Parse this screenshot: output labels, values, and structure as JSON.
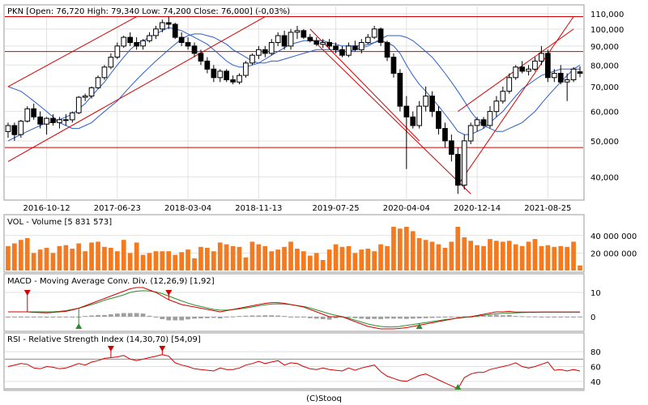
{
  "chart_data": [
    {
      "type": "candlestick",
      "title": "PKN [Open: 76,720  High: 79,340  Low: 74,200  Close: 76,000] (-0,03%)",
      "ticker": "PKN",
      "last": {
        "open": 76.72,
        "high": 79.34,
        "low": 74.2,
        "close": 76.0,
        "change_pct": "-0,03%"
      },
      "x_tick_labels": [
        "2016-10-12",
        "2017-06-23",
        "2018-03-04",
        "2018-11-13",
        "2019-07-25",
        "2020-04-04",
        "2020-12-14",
        "2021-08-25"
      ],
      "y_tick_labels": [
        "40,000",
        "50,000",
        "60,000",
        "70,000",
        "80,000",
        "90,000",
        "100,000",
        "110,000"
      ],
      "y_scale": "log",
      "ylim": [
        35,
        115
      ],
      "candles": [
        [
          53.0,
          56.0,
          51.0,
          55.0
        ],
        [
          55.0,
          56.0,
          50.0,
          52.0
        ],
        [
          52.0,
          57.0,
          51.0,
          56.5
        ],
        [
          56.5,
          62.0,
          56.0,
          61.0
        ],
        [
          61.0,
          63.0,
          57.0,
          58.0
        ],
        [
          58.0,
          60.0,
          54.0,
          55.5
        ],
        [
          55.5,
          58.0,
          52.0,
          57.5
        ],
        [
          57.5,
          59.0,
          55.0,
          56.0
        ],
        [
          56.0,
          58.0,
          54.0,
          57.0
        ],
        [
          57.0,
          59.0,
          55.0,
          57.0
        ],
        [
          57.0,
          60.0,
          56.0,
          59.5
        ],
        [
          59.5,
          66.0,
          59.0,
          65.5
        ],
        [
          65.5,
          67.0,
          64.0,
          66.0
        ],
        [
          66.0,
          70.0,
          65.0,
          69.5
        ],
        [
          69.5,
          75.0,
          69.0,
          74.0
        ],
        [
          74.0,
          80.0,
          73.0,
          79.0
        ],
        [
          79.0,
          86.0,
          78.0,
          84.0
        ],
        [
          84.0,
          92.0,
          83.0,
          90.0
        ],
        [
          90.0,
          96.0,
          89.0,
          95.0
        ],
        [
          95.0,
          98.0,
          90.0,
          92.0
        ],
        [
          92.0,
          95.0,
          88.0,
          90.0
        ],
        [
          90.0,
          94.0,
          88.0,
          93.0
        ],
        [
          93.0,
          98.0,
          92.0,
          96.0
        ],
        [
          96.0,
          102.0,
          94.0,
          100.0
        ],
        [
          100.0,
          106.0,
          98.0,
          104.0
        ],
        [
          104.0,
          108.0,
          100.0,
          103.0
        ],
        [
          103.0,
          104.0,
          94.0,
          95.0
        ],
        [
          95.0,
          98.0,
          90.0,
          92.0
        ],
        [
          92.0,
          95.0,
          88.0,
          90.0
        ],
        [
          90.0,
          92.0,
          84.0,
          86.0
        ],
        [
          86.0,
          88.0,
          80.0,
          82.0
        ],
        [
          82.0,
          84.0,
          76.0,
          78.0
        ],
        [
          78.0,
          80.0,
          72.0,
          74.0
        ],
        [
          74.0,
          78.0,
          72.0,
          77.0
        ],
        [
          77.0,
          78.0,
          72.0,
          73.0
        ],
        [
          73.0,
          75.0,
          71.0,
          72.0
        ],
        [
          72.0,
          76.0,
          71.0,
          75.0
        ],
        [
          75.0,
          82.0,
          74.0,
          81.0
        ],
        [
          81.0,
          86.0,
          80.0,
          85.0
        ],
        [
          85.0,
          90.0,
          83.0,
          88.0
        ],
        [
          88.0,
          90.0,
          84.0,
          86.0
        ],
        [
          86.0,
          94.0,
          85.0,
          92.0
        ],
        [
          92.0,
          98.0,
          90.0,
          96.0
        ],
        [
          96.0,
          99.0,
          88.0,
          90.0
        ],
        [
          90.0,
          100.0,
          88.0,
          98.0
        ],
        [
          98.0,
          102.0,
          94.0,
          99.0
        ],
        [
          99.0,
          100.0,
          94.0,
          95.0
        ],
        [
          95.0,
          97.0,
          92.0,
          93.0
        ],
        [
          93.0,
          95.0,
          90.0,
          91.0
        ],
        [
          91.0,
          94.0,
          89.0,
          92.0
        ],
        [
          92.0,
          94.0,
          88.0,
          90.0
        ],
        [
          90.0,
          92.0,
          86.0,
          88.0
        ],
        [
          88.0,
          90.0,
          84.0,
          85.0
        ],
        [
          85.0,
          92.0,
          84.0,
          90.0
        ],
        [
          90.0,
          93.0,
          87.0,
          88.0
        ],
        [
          88.0,
          94.0,
          86.0,
          92.0
        ],
        [
          92.0,
          97.0,
          91.0,
          95.0
        ],
        [
          95.0,
          102.0,
          94.0,
          100.0
        ],
        [
          100.0,
          101.0,
          90.0,
          92.0
        ],
        [
          92.0,
          93.0,
          82.0,
          84.0
        ],
        [
          84.0,
          86.0,
          74.0,
          76.0
        ],
        [
          76.0,
          78.0,
          60.0,
          62.0
        ],
        [
          62.0,
          66.0,
          42.0,
          58.0
        ],
        [
          58.0,
          60.0,
          54.0,
          55.0
        ],
        [
          55.0,
          64.0,
          54.0,
          62.0
        ],
        [
          62.0,
          70.0,
          60.0,
          66.0
        ],
        [
          66.0,
          68.0,
          58.0,
          60.0
        ],
        [
          60.0,
          62.0,
          52.0,
          54.0
        ],
        [
          54.0,
          56.0,
          48.0,
          50.0
        ],
        [
          50.0,
          52.0,
          44.0,
          46.0
        ],
        [
          46.0,
          48.0,
          36.0,
          38.0
        ],
        [
          38.0,
          52.0,
          37.0,
          50.0
        ],
        [
          50.0,
          56.0,
          49.0,
          55.0
        ],
        [
          55.0,
          58.0,
          53.0,
          57.0
        ],
        [
          57.0,
          58.0,
          54.0,
          55.0
        ],
        [
          55.0,
          62.0,
          54.0,
          60.0
        ],
        [
          60.0,
          66.0,
          58.0,
          64.0
        ],
        [
          64.0,
          70.0,
          63.0,
          68.0
        ],
        [
          68.0,
          76.0,
          67.0,
          74.0
        ],
        [
          74.0,
          80.0,
          73.0,
          79.0
        ],
        [
          79.0,
          82.0,
          76.0,
          77.0
        ],
        [
          77.0,
          80.0,
          75.0,
          78.0
        ],
        [
          78.0,
          84.0,
          77.0,
          82.0
        ],
        [
          82.0,
          90.0,
          80.0,
          86.0
        ],
        [
          86.0,
          88.0,
          72.0,
          74.0
        ],
        [
          74.0,
          78.0,
          72.0,
          76.0
        ],
        [
          76.0,
          80.0,
          71.0,
          72.0
        ],
        [
          72.0,
          76.0,
          64.0,
          73.0
        ],
        [
          73.0,
          79.0,
          72.0,
          78.0
        ],
        [
          76.72,
          79.34,
          74.2,
          76.0
        ]
      ],
      "overlays": {
        "moving_average_fast": [
          50,
          51,
          52,
          53,
          54,
          55,
          56,
          56,
          57,
          58,
          59,
          61,
          63,
          66,
          69,
          72,
          76,
          80,
          84,
          88,
          91,
          93,
          95,
          97,
          99,
          101,
          100,
          99,
          97,
          95,
          93,
          91,
          88,
          85,
          82,
          80,
          79,
          79,
          80,
          81,
          83,
          85,
          87,
          89,
          91,
          92,
          93,
          93,
          93,
          93,
          92,
          91,
          90,
          90,
          90,
          90,
          91,
          92,
          93,
          92,
          90,
          86,
          80,
          75,
          71,
          68,
          65,
          62,
          59,
          56,
          53,
          52,
          52,
          53,
          54,
          56,
          58,
          60,
          63,
          66,
          69,
          71,
          73,
          75,
          76,
          77,
          78,
          78,
          78,
          78
        ],
        "moving_average_slow": [
          70,
          69,
          68,
          66,
          64,
          62,
          60,
          58,
          56,
          55,
          54,
          54,
          55,
          56,
          58,
          60,
          62,
          64,
          67,
          70,
          73,
          76,
          79,
          82,
          85,
          88,
          91,
          94,
          96,
          97,
          97,
          96,
          95,
          93,
          91,
          88,
          86,
          84,
          82,
          81,
          81,
          82,
          82,
          83,
          84,
          85,
          86,
          87,
          88,
          88,
          88,
          88,
          87,
          87,
          88,
          89,
          90,
          92,
          94,
          96,
          96,
          96,
          95,
          93,
          90,
          87,
          84,
          80,
          76,
          72,
          68,
          64,
          60,
          57,
          55,
          54,
          53,
          53,
          54,
          55,
          56,
          58,
          60,
          63,
          66,
          69,
          72,
          75,
          78,
          80
        ],
        "horizontal_levels": [
          108,
          48,
          87
        ],
        "channel_lines": "red trend lines (upper and lower channel boundaries)"
      }
    },
    {
      "type": "bar",
      "title": "VOL - Volume [5 831 573]",
      "y_tick_labels": [
        "20 000 000",
        "40 000 000"
      ],
      "ylim": [
        0,
        50000000
      ],
      "values": [
        28000000,
        31000000,
        35000000,
        37000000,
        20000000,
        24000000,
        26000000,
        20000000,
        28000000,
        29000000,
        25000000,
        31000000,
        22000000,
        32000000,
        33000000,
        27000000,
        26000000,
        22000000,
        35000000,
        20000000,
        32000000,
        18000000,
        20000000,
        22000000,
        22000000,
        22000000,
        18000000,
        21000000,
        24000000,
        14000000,
        27000000,
        26000000,
        22000000,
        32000000,
        30000000,
        28000000,
        27000000,
        15000000,
        33000000,
        30000000,
        28000000,
        22000000,
        24000000,
        27000000,
        33000000,
        25000000,
        22000000,
        17000000,
        20000000,
        12000000,
        24000000,
        30000000,
        27000000,
        28000000,
        20000000,
        24000000,
        25000000,
        22000000,
        30000000,
        28000000,
        50000000,
        48000000,
        50000000,
        45000000,
        37000000,
        35000000,
        33000000,
        30000000,
        26000000,
        33000000,
        50000000,
        38000000,
        34000000,
        29000000,
        28000000,
        36000000,
        34000000,
        33000000,
        34000000,
        30000000,
        28000000,
        33000000,
        36000000,
        28000000,
        29000000,
        27000000,
        28000000,
        27000000,
        33000000,
        5831573
      ]
    },
    {
      "type": "line",
      "title": "MACD - Moving Average Conv. Div. (12,26,9) [1,92]",
      "y_tick_labels": [
        "0",
        "10"
      ],
      "ylim": [
        -5,
        13
      ],
      "series": [
        {
          "name": "MACD",
          "values": [
            2,
            2,
            2,
            2,
            1.8,
            1.7,
            1.6,
            1.8,
            2,
            2.2,
            2.8,
            3.5,
            4.5,
            5.5,
            6.5,
            7.5,
            8.5,
            9.5,
            10.5,
            11.5,
            12,
            12,
            11,
            10,
            8.5,
            7,
            6,
            5,
            4.5,
            4,
            3.5,
            3,
            2.5,
            2,
            2.5,
            3,
            3.5,
            4,
            4.5,
            5,
            5.5,
            5.8,
            5.8,
            5.5,
            5,
            4.5,
            4,
            3,
            2,
            1,
            0,
            0,
            0,
            -1,
            -2,
            -3,
            -4,
            -4.5,
            -5,
            -5,
            -5,
            -4.8,
            -4.5,
            -4,
            -3.5,
            -3,
            -2.5,
            -2,
            -1.5,
            -1,
            -0.5,
            -0.2,
            0,
            0.5,
            1,
            1.5,
            2,
            2,
            2.2,
            1.9,
            1.9,
            1.9,
            1.9,
            1.9,
            1.9,
            1.9,
            1.9,
            1.9,
            1.9,
            1.92
          ]
        },
        {
          "name": "Signal",
          "values": [
            2,
            2,
            2,
            2,
            2,
            2,
            2,
            2,
            2.2,
            2.5,
            3,
            3.5,
            4.2,
            5,
            5.8,
            6.8,
            7.5,
            8.2,
            9,
            10,
            10.5,
            10.7,
            10.6,
            10.2,
            9.5,
            8.5,
            7.5,
            6.5,
            5.6,
            4.8,
            4.2,
            3.6,
            3,
            2.7,
            2.7,
            2.9,
            3.2,
            3.6,
            4,
            4.5,
            4.9,
            5.2,
            5.3,
            5.2,
            5,
            4.6,
            4.2,
            3.6,
            2.8,
            2,
            1.2,
            0.6,
            0,
            -0.6,
            -1.4,
            -2.2,
            -3,
            -3.6,
            -4,
            -4.2,
            -4.2,
            -4,
            -3.6,
            -3.2,
            -2.8,
            -2.4,
            -2,
            -1.6,
            -1.2,
            -0.9,
            -0.6,
            -0.3,
            0,
            0.3,
            0.6,
            0.9,
            1.2,
            1.4,
            1.5,
            1.6,
            1.7,
            1.8,
            1.8,
            1.9,
            1.9,
            1.9,
            1.9,
            1.9,
            1.9,
            1.9
          ]
        },
        {
          "name": "Histogram",
          "values": [
            0,
            0,
            0,
            0,
            -0.2,
            -0.3,
            -0.4,
            -0.2,
            -0.2,
            -0.3,
            -0.2,
            0,
            0.3,
            0.5,
            0.7,
            0.7,
            1,
            1.3,
            1.5,
            1.5,
            1.5,
            1.3,
            0.4,
            -0.2,
            -1,
            -1.5,
            -1.5,
            -1.5,
            -1.1,
            -0.8,
            -0.7,
            -0.6,
            -0.5,
            -0.7,
            -0.2,
            0.1,
            0.3,
            0.4,
            0.5,
            0.5,
            0.6,
            0.6,
            0.5,
            0.3,
            0,
            -0.1,
            -0.2,
            -0.6,
            -0.8,
            -1,
            -1.2,
            -0.6,
            0,
            -0.4,
            -0.6,
            -0.8,
            -1,
            -0.9,
            -1,
            -0.8,
            -0.8,
            -0.8,
            -0.9,
            -0.8,
            -0.7,
            -0.6,
            -0.5,
            -0.4,
            -0.3,
            -0.1,
            0.1,
            0.1,
            0,
            0.2,
            0.4,
            0.6,
            0.8,
            0.6,
            0.7,
            0.3,
            0.2,
            0.1,
            0.1,
            0,
            0,
            0,
            0,
            0,
            0,
            0.02
          ]
        }
      ]
    },
    {
      "type": "line",
      "title": "RSI - Relative Strength Index (14,30,70) [54,09]",
      "y_tick_labels": [
        "40",
        "60",
        "80"
      ],
      "ylim": [
        30,
        90
      ],
      "reference_levels": [
        70,
        30
      ],
      "values": [
        60,
        62,
        64,
        63,
        58,
        57,
        60,
        59,
        57,
        58,
        61,
        64,
        62,
        66,
        68,
        71,
        72,
        73,
        75,
        70,
        68,
        70,
        72,
        74,
        76,
        74,
        65,
        62,
        60,
        57,
        56,
        55,
        54,
        58,
        56,
        56,
        58,
        62,
        64,
        67,
        64,
        66,
        68,
        62,
        65,
        64,
        60,
        57,
        56,
        58,
        56,
        55,
        54,
        58,
        55,
        58,
        60,
        62,
        53,
        47,
        44,
        41,
        40,
        44,
        48,
        50,
        46,
        42,
        38,
        34,
        30,
        45,
        50,
        52,
        52,
        56,
        58,
        60,
        62,
        65,
        60,
        58,
        60,
        63,
        66,
        55,
        56,
        54,
        56,
        54
      ]
    }
  ],
  "footer": "(C)Stooq"
}
